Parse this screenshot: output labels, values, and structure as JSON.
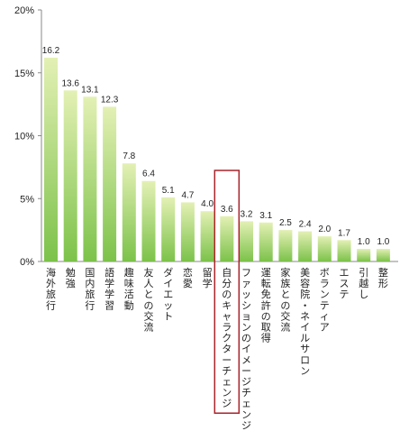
{
  "chart_data": {
    "type": "bar",
    "categories": [
      "海外旅行",
      "勉強",
      "国内旅行",
      "語学学習",
      "趣味活動",
      "友人との交流",
      "ダイエット",
      "恋愛",
      "留学",
      "自分のキャラクターチェンジ",
      "ファッションのイメージチェンジ",
      "運転免許の取得",
      "家族との交流",
      "美容院・ネイルサロン",
      "ボランティア",
      "エステ",
      "引越し",
      "整形"
    ],
    "values": [
      16.2,
      13.6,
      13.1,
      12.3,
      7.8,
      6.4,
      5.1,
      4.7,
      4.0,
      3.6,
      3.2,
      3.1,
      2.5,
      2.4,
      2.0,
      1.7,
      1.0,
      1.0
    ],
    "data_labels": [
      "16.2",
      "13.6",
      "13.1",
      "12.3",
      "7.8",
      "6.4",
      "5.1",
      "4.7",
      "4.0",
      "3.6",
      "3.2",
      "3.1",
      "2.5",
      "2.4",
      "2.0",
      "1.7",
      "1.0",
      "1.0"
    ],
    "y_ticks": [
      0,
      5,
      10,
      15,
      20
    ],
    "y_tick_labels": [
      "0%",
      "5%",
      "10%",
      "15%",
      "20%"
    ],
    "ylim": [
      0,
      20
    ],
    "grid": false,
    "highlighted_category": "自分のキャラクターチェンジ",
    "colors": {
      "bar_top": "#e3f0b4",
      "bar_bottom": "#7cc24a",
      "highlight_box": "#a8242a",
      "axis": "#8a8a8a"
    }
  }
}
